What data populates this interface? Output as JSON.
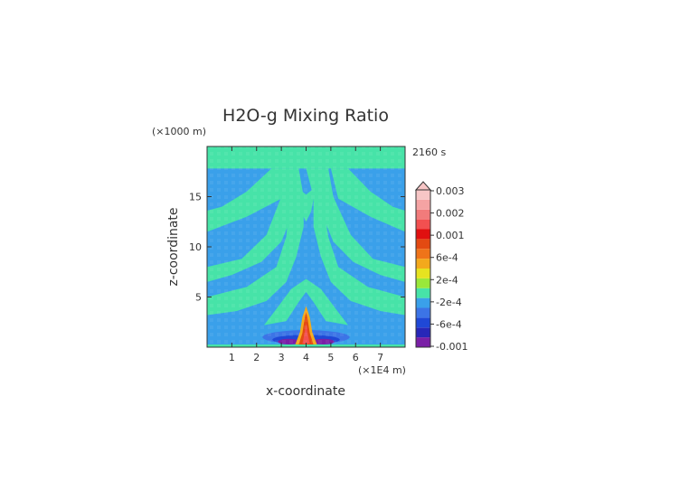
{
  "chart_data": {
    "type": "heatmap",
    "title": "H2O-g Mixing Ratio",
    "time_label": "2160 s",
    "xlabel": "x-coordinate",
    "ylabel": "z-coordinate",
    "x_scale_label": "(×1E4 m)",
    "y_scale_label": "(×1000 m)",
    "xlim": [
      0,
      8
    ],
    "ylim": [
      0,
      20
    ],
    "x_ticks": [
      1,
      2,
      3,
      4,
      5,
      6,
      7
    ],
    "x_tick_labels": [
      "1",
      "2",
      "3",
      "4",
      "5",
      "6",
      "7"
    ],
    "y_ticks": [
      5,
      10,
      15
    ],
    "y_tick_labels": [
      "5",
      "10",
      "15"
    ],
    "colorbar": {
      "colors": [
        "#7a1fa6",
        "#2727b8",
        "#1f48d6",
        "#3c74e6",
        "#3aa0ea",
        "#47e3a8",
        "#9ae83a",
        "#e6e320",
        "#f3a91c",
        "#ef7419",
        "#e34a12",
        "#e01010",
        "#f25050",
        "#f27b7b",
        "#f5a3a3",
        "#f7c6c6"
      ],
      "labels": [
        "0.003",
        "0.002",
        "0.001",
        "6e-4",
        "2e-4",
        "-2e-4",
        "-6e-4",
        "-0.001"
      ],
      "extend_top": true
    },
    "field_levels": {
      "background": "#3aa0ea",
      "plume": "#47e3a8",
      "weak_negative": "#3c74e6",
      "negative": "#1f48d6",
      "strong_negative": "#7a1fa6",
      "core_low": "#f3a91c",
      "core_mid": "#e34a12",
      "core_high": "#f25050"
    }
  }
}
